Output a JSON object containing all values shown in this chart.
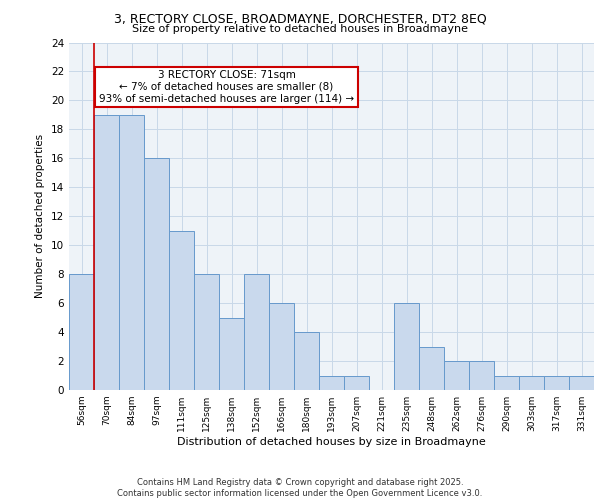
{
  "title1": "3, RECTORY CLOSE, BROADMAYNE, DORCHESTER, DT2 8EQ",
  "title2": "Size of property relative to detached houses in Broadmayne",
  "xlabel": "Distribution of detached houses by size in Broadmayne",
  "ylabel": "Number of detached properties",
  "bin_labels": [
    "56sqm",
    "70sqm",
    "84sqm",
    "97sqm",
    "111sqm",
    "125sqm",
    "138sqm",
    "152sqm",
    "166sqm",
    "180sqm",
    "193sqm",
    "207sqm",
    "221sqm",
    "235sqm",
    "248sqm",
    "262sqm",
    "276sqm",
    "290sqm",
    "303sqm",
    "317sqm",
    "331sqm"
  ],
  "bar_heights": [
    8,
    19,
    19,
    16,
    11,
    8,
    5,
    8,
    6,
    4,
    1,
    1,
    0,
    6,
    3,
    2,
    2,
    1,
    1,
    1,
    1
  ],
  "bar_color": "#c9d9ed",
  "bar_edge_color": "#6699cc",
  "grid_color": "#c8d8e8",
  "bg_color": "#eef3f8",
  "annotation_text": "3 RECTORY CLOSE: 71sqm\n← 7% of detached houses are smaller (8)\n93% of semi-detached houses are larger (114) →",
  "annotation_box_color": "#ffffff",
  "annotation_border_color": "#cc0000",
  "footer": "Contains HM Land Registry data © Crown copyright and database right 2025.\nContains public sector information licensed under the Open Government Licence v3.0.",
  "ylim": [
    0,
    24
  ],
  "yticks": [
    0,
    2,
    4,
    6,
    8,
    10,
    12,
    14,
    16,
    18,
    20,
    22,
    24
  ]
}
